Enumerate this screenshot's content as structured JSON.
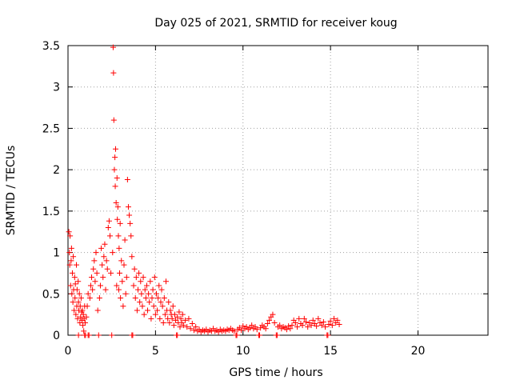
{
  "chart_data": {
    "type": "scatter",
    "title": "Day 025 of 2021, SRMTID for receiver koug",
    "xlabel": "GPS time / hours",
    "ylabel": "SRMTID / TECUs",
    "xlim": [
      0,
      24
    ],
    "ylim": [
      0,
      3.5
    ],
    "x_ticks": [
      0,
      5,
      10,
      15,
      20
    ],
    "x_tick_labels": [
      "0",
      "5",
      "10",
      "15",
      "20"
    ],
    "y_ticks": [
      0,
      0.5,
      1,
      1.5,
      2,
      2.5,
      3,
      3.5
    ],
    "y_tick_labels": [
      "0",
      "0.5",
      "1",
      "1.5",
      "2",
      "2.5",
      "3",
      "3.5"
    ],
    "grid": true,
    "marker": "+",
    "series": [
      {
        "name": "SRMTID",
        "color": "#ff0000",
        "points": [
          [
            0.05,
            1.25
          ],
          [
            0.08,
            1.0
          ],
          [
            0.1,
            0.85
          ],
          [
            0.12,
            1.2
          ],
          [
            0.15,
            0.6
          ],
          [
            0.18,
            0.9
          ],
          [
            0.2,
            1.05
          ],
          [
            0.22,
            0.5
          ],
          [
            0.25,
            0.75
          ],
          [
            0.28,
            0.4
          ],
          [
            0.3,
            0.95
          ],
          [
            0.32,
            0.55
          ],
          [
            0.35,
            0.3
          ],
          [
            0.38,
            0.7
          ],
          [
            0.4,
            0.45
          ],
          [
            0.42,
            0.62
          ],
          [
            0.45,
            0.25
          ],
          [
            0.48,
            0.85
          ],
          [
            0.5,
            0.35
          ],
          [
            0.52,
            0.55
          ],
          [
            0.55,
            0.2
          ],
          [
            0.58,
            0.65
          ],
          [
            0.6,
            0.4
          ],
          [
            0.62,
            0.3
          ],
          [
            0.65,
            0.5
          ],
          [
            0.68,
            0.15
          ],
          [
            0.7,
            0.35
          ],
          [
            0.72,
            0.22
          ],
          [
            0.75,
            0.45
          ],
          [
            0.78,
            0.28
          ],
          [
            0.8,
            0.18
          ],
          [
            0.82,
            0.3
          ],
          [
            0.85,
            0.12
          ],
          [
            0.88,
            0.25
          ],
          [
            0.9,
            0.05
          ],
          [
            0.92,
            0.2
          ],
          [
            0.95,
            0.35
          ],
          [
            0.98,
            0.15
          ],
          [
            1.0,
            0.0
          ],
          [
            1.05,
            0.22
          ],
          [
            1.1,
            0.35
          ],
          [
            1.15,
            0.5
          ],
          [
            1.2,
            0.0
          ],
          [
            1.25,
            0.45
          ],
          [
            1.3,
            0.6
          ],
          [
            1.35,
            0.7
          ],
          [
            1.4,
            0.55
          ],
          [
            1.45,
            0.8
          ],
          [
            1.5,
            0.9
          ],
          [
            1.55,
            0.65
          ],
          [
            1.6,
            1.0
          ],
          [
            1.65,
            0.75
          ],
          [
            1.7,
            0.3
          ],
          [
            1.75,
            0.0
          ],
          [
            1.8,
            0.45
          ],
          [
            1.85,
            0.6
          ],
          [
            1.9,
            1.05
          ],
          [
            1.95,
            0.85
          ],
          [
            2.0,
            0.7
          ],
          [
            2.05,
            0.95
          ],
          [
            2.1,
            1.1
          ],
          [
            2.15,
            0.55
          ],
          [
            2.2,
            0.9
          ],
          [
            2.25,
            0.8
          ],
          [
            2.3,
            1.3
          ],
          [
            2.35,
            1.38
          ],
          [
            2.4,
            1.2
          ],
          [
            2.45,
            0.75
          ],
          [
            2.5,
            0.0
          ],
          [
            2.55,
            1.0
          ],
          [
            2.58,
            3.48
          ],
          [
            2.6,
            3.17
          ],
          [
            2.62,
            2.6
          ],
          [
            2.65,
            2.0
          ],
          [
            2.68,
            2.15
          ],
          [
            2.7,
            1.8
          ],
          [
            2.72,
            2.25
          ],
          [
            2.75,
            1.6
          ],
          [
            2.78,
            0.6
          ],
          [
            2.8,
            1.9
          ],
          [
            2.82,
            1.4
          ],
          [
            2.85,
            1.55
          ],
          [
            2.88,
            1.2
          ],
          [
            2.9,
            0.55
          ],
          [
            2.92,
            1.05
          ],
          [
            2.95,
            0.75
          ],
          [
            2.98,
            1.35
          ],
          [
            3.0,
            0.45
          ],
          [
            3.05,
            0.9
          ],
          [
            3.1,
            0.65
          ],
          [
            3.15,
            0.35
          ],
          [
            3.2,
            0.85
          ],
          [
            3.25,
            1.15
          ],
          [
            3.3,
            0.5
          ],
          [
            3.35,
            0.7
          ],
          [
            3.4,
            1.88
          ],
          [
            3.45,
            1.55
          ],
          [
            3.5,
            1.45
          ],
          [
            3.55,
            1.35
          ],
          [
            3.6,
            1.2
          ],
          [
            3.65,
            0.95
          ],
          [
            3.7,
            0.0
          ],
          [
            3.75,
            0.6
          ],
          [
            3.8,
            0.8
          ],
          [
            3.85,
            0.45
          ],
          [
            3.9,
            0.7
          ],
          [
            3.95,
            0.3
          ],
          [
            4.0,
            0.55
          ],
          [
            4.05,
            0.75
          ],
          [
            4.1,
            0.4
          ],
          [
            4.15,
            0.65
          ],
          [
            4.2,
            0.5
          ],
          [
            4.25,
            0.35
          ],
          [
            4.3,
            0.7
          ],
          [
            4.35,
            0.25
          ],
          [
            4.4,
            0.55
          ],
          [
            4.45,
            0.45
          ],
          [
            4.5,
            0.6
          ],
          [
            4.55,
            0.3
          ],
          [
            4.6,
            0.5
          ],
          [
            4.65,
            0.4
          ],
          [
            4.7,
            0.65
          ],
          [
            4.75,
            0.2
          ],
          [
            4.8,
            0.45
          ],
          [
            4.85,
            0.55
          ],
          [
            4.9,
            0.35
          ],
          [
            4.95,
            0.7
          ],
          [
            5.0,
            0.25
          ],
          [
            5.05,
            0.5
          ],
          [
            5.1,
            0.3
          ],
          [
            5.15,
            0.45
          ],
          [
            5.2,
            0.6
          ],
          [
            5.25,
            0.2
          ],
          [
            5.3,
            0.4
          ],
          [
            5.35,
            0.55
          ],
          [
            5.4,
            0.35
          ],
          [
            5.45,
            0.15
          ],
          [
            5.5,
            0.45
          ],
          [
            5.55,
            0.25
          ],
          [
            5.6,
            0.65
          ],
          [
            5.65,
            0.3
          ],
          [
            5.7,
            0.2
          ],
          [
            5.75,
            0.4
          ],
          [
            5.8,
            0.15
          ],
          [
            5.85,
            0.3
          ],
          [
            5.9,
            0.25
          ],
          [
            5.95,
            0.2
          ],
          [
            6.0,
            0.35
          ],
          [
            6.05,
            0.12
          ],
          [
            6.1,
            0.25
          ],
          [
            6.15,
            0.18
          ],
          [
            6.2,
            0.0
          ],
          [
            6.25,
            0.22
          ],
          [
            6.3,
            0.15
          ],
          [
            6.35,
            0.28
          ],
          [
            6.4,
            0.1
          ],
          [
            6.45,
            0.2
          ],
          [
            6.5,
            0.15
          ],
          [
            6.55,
            0.25
          ],
          [
            6.6,
            0.12
          ],
          [
            6.7,
            0.18
          ],
          [
            6.8,
            0.1
          ],
          [
            6.9,
            0.2
          ],
          [
            7.0,
            0.08
          ],
          [
            7.1,
            0.14
          ],
          [
            7.2,
            0.06
          ],
          [
            7.3,
            0.1
          ],
          [
            7.4,
            0.05
          ],
          [
            7.5,
            0.07
          ],
          [
            7.6,
            0.04
          ],
          [
            7.7,
            0.06
          ],
          [
            7.8,
            0.05
          ],
          [
            7.9,
            0.07
          ],
          [
            8.0,
            0.04
          ],
          [
            8.1,
            0.06
          ],
          [
            8.2,
            0.05
          ],
          [
            8.3,
            0.08
          ],
          [
            8.4,
            0.05
          ],
          [
            8.5,
            0.06
          ],
          [
            8.6,
            0.04
          ],
          [
            8.7,
            0.07
          ],
          [
            8.8,
            0.05
          ],
          [
            8.9,
            0.06
          ],
          [
            9.0,
            0.05
          ],
          [
            9.1,
            0.07
          ],
          [
            9.2,
            0.06
          ],
          [
            9.3,
            0.08
          ],
          [
            9.4,
            0.06
          ],
          [
            9.5,
            0.05
          ],
          [
            9.6,
            0.0
          ],
          [
            9.7,
            0.07
          ],
          [
            9.8,
            0.09
          ],
          [
            9.9,
            0.06
          ],
          [
            10.0,
            0.11
          ],
          [
            10.1,
            0.08
          ],
          [
            10.2,
            0.1
          ],
          [
            10.3,
            0.07
          ],
          [
            10.4,
            0.09
          ],
          [
            10.5,
            0.12
          ],
          [
            10.6,
            0.08
          ],
          [
            10.7,
            0.1
          ],
          [
            10.8,
            0.07
          ],
          [
            10.9,
            0.0
          ],
          [
            11.0,
            0.09
          ],
          [
            11.1,
            0.12
          ],
          [
            11.2,
            0.1
          ],
          [
            11.3,
            0.08
          ],
          [
            11.4,
            0.14
          ],
          [
            11.5,
            0.18
          ],
          [
            11.6,
            0.22
          ],
          [
            11.7,
            0.25
          ],
          [
            11.8,
            0.15
          ],
          [
            11.9,
            0.0
          ],
          [
            12.0,
            0.1
          ],
          [
            12.1,
            0.12
          ],
          [
            12.2,
            0.08
          ],
          [
            12.3,
            0.1
          ],
          [
            12.4,
            0.09
          ],
          [
            12.5,
            0.07
          ],
          [
            12.6,
            0.11
          ],
          [
            12.7,
            0.08
          ],
          [
            12.8,
            0.12
          ],
          [
            12.9,
            0.18
          ],
          [
            13.0,
            0.15
          ],
          [
            13.1,
            0.1
          ],
          [
            13.2,
            0.2
          ],
          [
            13.3,
            0.14
          ],
          [
            13.4,
            0.12
          ],
          [
            13.5,
            0.2
          ],
          [
            13.6,
            0.16
          ],
          [
            13.7,
            0.1
          ],
          [
            13.8,
            0.15
          ],
          [
            13.9,
            0.12
          ],
          [
            14.0,
            0.18
          ],
          [
            14.1,
            0.14
          ],
          [
            14.2,
            0.11
          ],
          [
            14.3,
            0.2
          ],
          [
            14.4,
            0.15
          ],
          [
            14.5,
            0.12
          ],
          [
            14.6,
            0.16
          ],
          [
            14.7,
            0.1
          ],
          [
            14.8,
            0.0
          ],
          [
            14.9,
            0.13
          ],
          [
            15.0,
            0.17
          ],
          [
            15.1,
            0.12
          ],
          [
            15.2,
            0.2
          ],
          [
            15.3,
            0.15
          ],
          [
            15.4,
            0.18
          ],
          [
            15.5,
            0.13
          ],
          [
            0.6,
            0.0
          ],
          [
            0.95,
            0.0
          ],
          [
            1.15,
            0.0
          ],
          [
            3.65,
            0.0
          ],
          [
            6.25,
            0.0
          ],
          [
            9.65,
            0.0
          ],
          [
            10.95,
            0.0
          ],
          [
            11.95,
            0.0
          ],
          [
            14.85,
            0.0
          ]
        ]
      }
    ]
  }
}
